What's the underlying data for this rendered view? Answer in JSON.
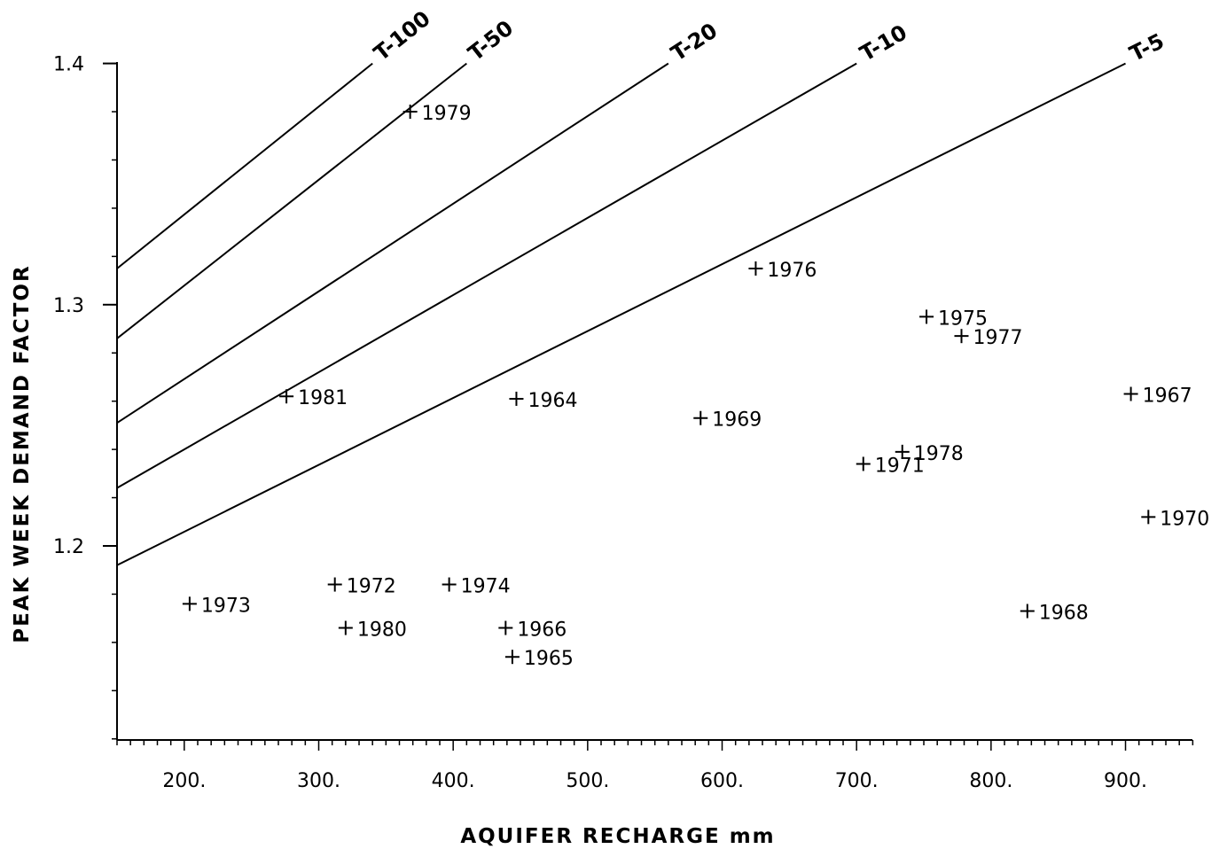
{
  "chart_data": {
    "type": "scatter",
    "title": "",
    "xlabel": "AQUIFER     RECHARGE     mm",
    "ylabel": "PEAK WEEK DEMAND FACTOR",
    "xlim": [
      150,
      950
    ],
    "ylim": [
      1.12,
      1.4
    ],
    "x_ticks": [
      {
        "value": 200,
        "label": "200."
      },
      {
        "value": 300,
        "label": "300."
      },
      {
        "value": 400,
        "label": "400."
      },
      {
        "value": 500,
        "label": "500."
      },
      {
        "value": 600,
        "label": "600."
      },
      {
        "value": 700,
        "label": "700."
      },
      {
        "value": 800,
        "label": "800."
      },
      {
        "value": 900,
        "label": "900."
      }
    ],
    "y_ticks": [
      {
        "value": 1.2,
        "label": "1.2"
      },
      {
        "value": 1.3,
        "label": "1.3"
      },
      {
        "value": 1.4,
        "label": "1.4"
      }
    ],
    "grid": false,
    "legend": "none",
    "points": [
      {
        "label": "1979",
        "x": 368,
        "y": 1.38
      },
      {
        "label": "1976",
        "x": 625,
        "y": 1.315
      },
      {
        "label": "1975",
        "x": 752,
        "y": 1.295
      },
      {
        "label": "1977",
        "x": 778,
        "y": 1.287
      },
      {
        "label": "1981",
        "x": 276,
        "y": 1.262
      },
      {
        "label": "1964",
        "x": 447,
        "y": 1.261
      },
      {
        "label": "1967",
        "x": 904,
        "y": 1.263
      },
      {
        "label": "1969",
        "x": 584,
        "y": 1.253
      },
      {
        "label": "1978",
        "x": 734,
        "y": 1.239
      },
      {
        "label": "1971",
        "x": 705,
        "y": 1.234
      },
      {
        "label": "1970",
        "x": 917,
        "y": 1.212
      },
      {
        "label": "1972",
        "x": 312,
        "y": 1.184
      },
      {
        "label": "1974",
        "x": 397,
        "y": 1.184
      },
      {
        "label": "1973",
        "x": 204,
        "y": 1.176
      },
      {
        "label": "1980",
        "x": 320,
        "y": 1.166
      },
      {
        "label": "1966",
        "x": 439,
        "y": 1.166
      },
      {
        "label": "1965",
        "x": 444,
        "y": 1.154
      },
      {
        "label": "1968",
        "x": 827,
        "y": 1.173
      }
    ],
    "curves": [
      {
        "name": "T-100",
        "x": [
          150,
          340
        ],
        "y": [
          1.315,
          1.4
        ]
      },
      {
        "name": "T-50",
        "x": [
          150,
          410
        ],
        "y": [
          1.286,
          1.4
        ]
      },
      {
        "name": "T-20",
        "x": [
          150,
          560
        ],
        "y": [
          1.251,
          1.4
        ]
      },
      {
        "name": "T-10",
        "x": [
          150,
          700
        ],
        "y": [
          1.224,
          1.4
        ]
      },
      {
        "name": "T-5",
        "x": [
          150,
          900
        ],
        "y": [
          1.192,
          1.4
        ]
      }
    ]
  }
}
